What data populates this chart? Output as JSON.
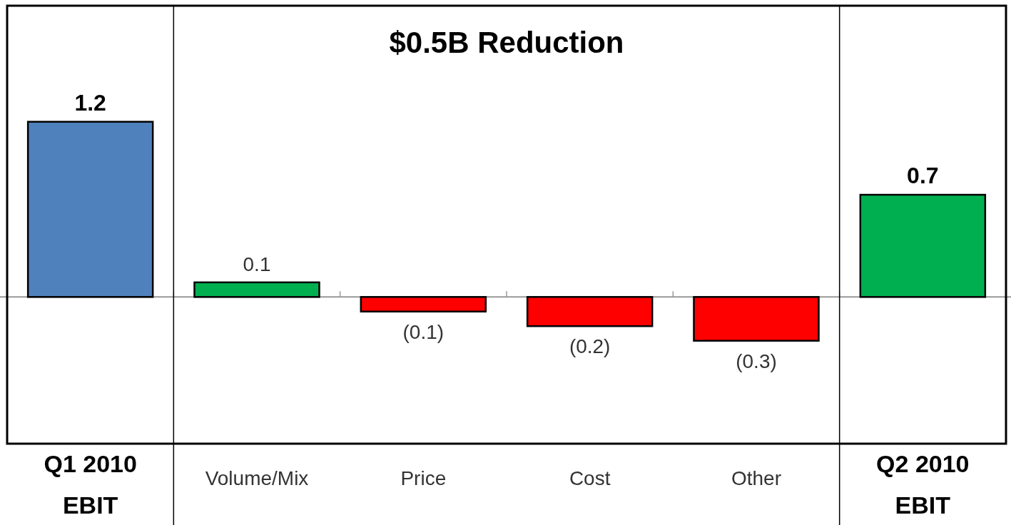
{
  "chart_data": {
    "type": "bar",
    "title": "$0.5B Reduction",
    "categories": [
      "Q1 2010\nEBIT",
      "Volume/Mix",
      "Price",
      "Cost",
      "Other",
      "Q2 2010\nEBIT"
    ],
    "values": [
      1.2,
      0.1,
      -0.1,
      -0.2,
      -0.3,
      0.7
    ],
    "colors": [
      "#4f81bd",
      "#00b050",
      "#ff0000",
      "#ff0000",
      "#ff0000",
      "#00b050"
    ],
    "value_labels": [
      "1.2",
      "0.1",
      "(0.1)",
      "(0.2)",
      "(0.3)",
      "0.7"
    ]
  }
}
